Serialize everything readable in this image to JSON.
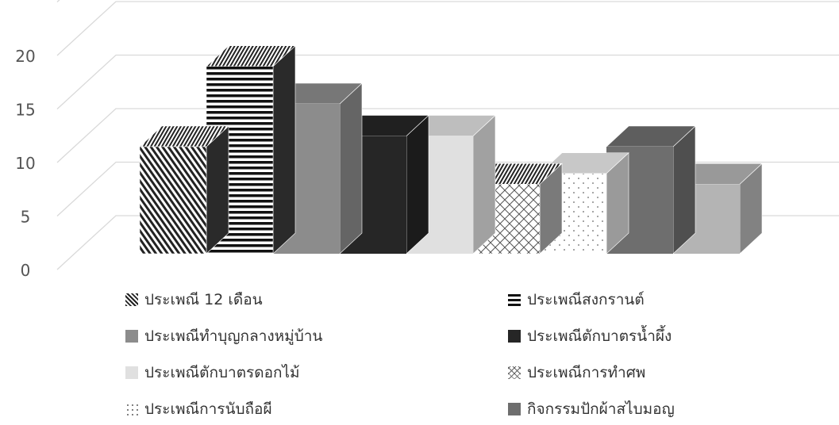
{
  "chart_data": {
    "type": "bar",
    "style": "3d-clustered-column",
    "title": "",
    "xlabel": "",
    "ylabel": "",
    "ylim": [
      0,
      25
    ],
    "yticks": [
      0,
      5,
      10,
      15,
      20
    ],
    "grid": true,
    "legend_position": "bottom",
    "series": [
      {
        "name": "ประเพณี 12 เดือน",
        "value": 10,
        "pattern": "diagonal-stripes",
        "color": "#333333",
        "swatch_icon": "diagonal-hatch-icon"
      },
      {
        "name": "ประเพณีสงกรานต์",
        "value": 17.5,
        "pattern": "horizontal-stripes",
        "color": "#111111",
        "swatch_icon": "horizontal-lines-icon"
      },
      {
        "name": "ประเพณีทำบุญกลางหมู่บ้าน",
        "value": 14,
        "pattern": "solid",
        "color": "#8c8c8c",
        "swatch_icon": "solid-square-icon"
      },
      {
        "name": "ประเพณีตักบาตรน้ำผึ้ง",
        "value": 11,
        "pattern": "solid",
        "color": "#262626",
        "swatch_icon": "solid-square-icon"
      },
      {
        "name": "ประเพณีตักบาตรดอกไม้",
        "value": 11,
        "pattern": "solid",
        "color": "#e0e0e0",
        "swatch_icon": "solid-square-icon"
      },
      {
        "name": "ประเพณีการทำศพ",
        "value": 6.5,
        "pattern": "crosshatch",
        "color": "#555555",
        "swatch_icon": "crosshatch-icon"
      },
      {
        "name": "ประเพณีการนับถือผี",
        "value": 7.5,
        "pattern": "dots",
        "color": "#777777",
        "swatch_icon": "dotted-icon"
      },
      {
        "name": "กิจกรรมปักผ้าสไบมอญ",
        "value": 10,
        "pattern": "solid",
        "color": "#6e6e6e",
        "swatch_icon": "solid-square-icon"
      },
      {
        "name": "",
        "value": 6.5,
        "pattern": "solid",
        "color": "#b4b4b4",
        "swatch_icon": ""
      }
    ]
  }
}
